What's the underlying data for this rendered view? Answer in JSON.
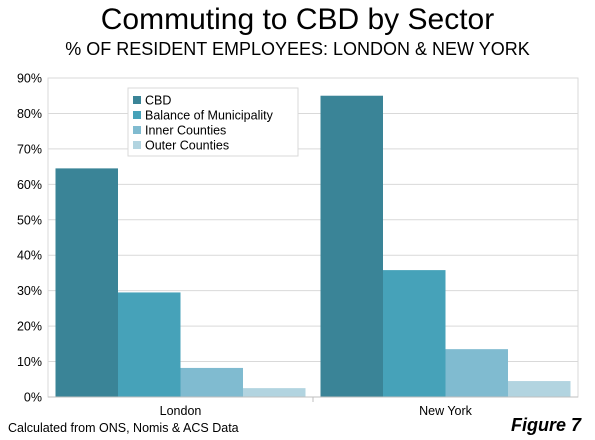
{
  "title": "Commuting to CBD by Sector",
  "subtitle": "% OF RESIDENT EMPLOYEES: LONDON & NEW YORK",
  "footer": {
    "source": "Calculated from ONS, Nomis & ACS Data",
    "figure_label": "Figure 7"
  },
  "chart_data": {
    "type": "bar",
    "categories": [
      "London",
      "New York"
    ],
    "series": [
      {
        "name": "CBD",
        "color": "#3a8497",
        "values": [
          64.5,
          85
        ]
      },
      {
        "name": "Balance of Municipality",
        "color": "#46a2b9",
        "values": [
          29.5,
          35.8
        ]
      },
      {
        "name": "Inner Counties",
        "color": "#80bbd0",
        "values": [
          8.2,
          13.5
        ]
      },
      {
        "name": "Outer Counties",
        "color": "#b2d4e0",
        "values": [
          2.5,
          4.5
        ]
      }
    ],
    "ylim": [
      0,
      90
    ],
    "yticks": [
      0,
      10,
      20,
      30,
      40,
      50,
      60,
      70,
      80,
      90
    ],
    "ytick_format": "percent",
    "grid": true,
    "legend_position": "top-center"
  }
}
